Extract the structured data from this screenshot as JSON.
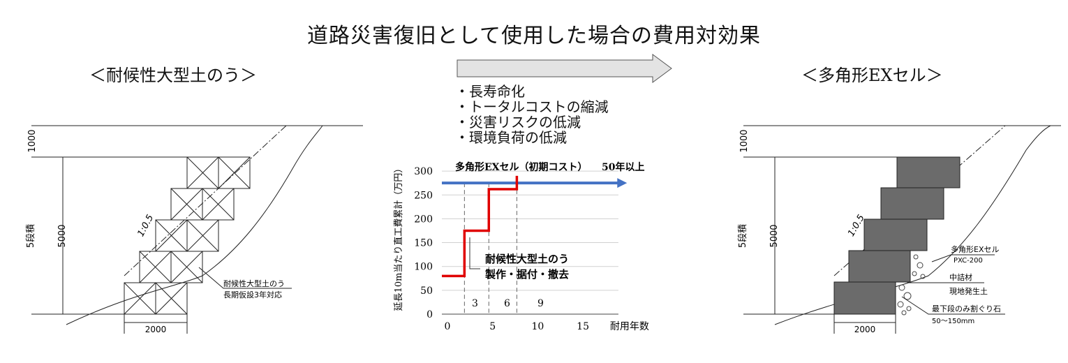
{
  "title": "道路災害復旧として使用した場合の費用対効果",
  "left_panel": {
    "heading": "＜耐候性大型土のう＞",
    "dim_top": "1000",
    "dim_side": "5段積",
    "dim_height": "5000",
    "slope": "1:0.5",
    "callout": [
      "耐候性大型土のう",
      "長期仮設3年対応"
    ],
    "dim_width": "2000"
  },
  "right_panel": {
    "heading": "＜多角形EXセル＞",
    "dim_top": "1000",
    "dim_side": "5段積",
    "dim_height": "5000",
    "slope": "1:0.5",
    "callouts": [
      [
        "多角形EXセル",
        "PXC-200"
      ],
      [
        "中詰材",
        "現地発生土"
      ],
      [
        "最下段のみ割ぐり石",
        "50～150mm"
      ]
    ],
    "dim_width": "2000"
  },
  "benefits": [
    "・長寿命化",
    "・トータルコストの縮減",
    "・災害リスクの低減",
    "・環境負荷の低減"
  ],
  "chart_data": {
    "type": "line",
    "ylabel": "延長10m当たり直工費累計（万円）",
    "xlabel": "耐用年数",
    "xlim": [
      0,
      18
    ],
    "ylim": [
      0,
      300
    ],
    "xticks": [
      0,
      5,
      10,
      15
    ],
    "yticks": [
      0,
      50,
      100,
      150,
      200,
      250,
      300
    ],
    "grid": true,
    "series": [
      {
        "name": "多角形EXセル（初期コスト）",
        "color": "#4472C4",
        "x": [
          0,
          20.5
        ],
        "y": [
          275,
          275
        ]
      },
      {
        "name": "耐候性大型土のう",
        "color": "#e00000",
        "x": [
          0,
          2.5,
          2.5,
          5.2,
          5.2,
          8.3,
          8.3
        ],
        "y": [
          80,
          80,
          175,
          175,
          262,
          262,
          290
        ]
      }
    ],
    "annotations": {
      "top_label": "多角形EXセル（初期コスト）",
      "top_right": "50年以上",
      "callout": [
        "耐候性大型土のう",
        "製作・据付・撤去"
      ],
      "periods": [
        "3",
        "6",
        "9"
      ]
    }
  }
}
